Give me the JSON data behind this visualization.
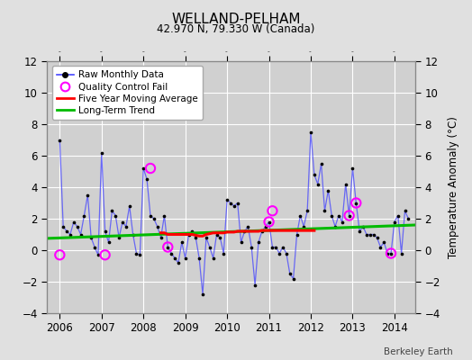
{
  "title": "WELLAND-PELHAM",
  "subtitle": "42.970 N, 79.330 W (Canada)",
  "ylabel": "Temperature Anomaly (°C)",
  "credit": "Berkeley Earth",
  "ylim": [
    -4,
    12
  ],
  "yticks": [
    -4,
    -2,
    0,
    2,
    4,
    6,
    8,
    10,
    12
  ],
  "xlim": [
    2005.7,
    2014.5
  ],
  "xticks": [
    2006,
    2007,
    2008,
    2009,
    2010,
    2011,
    2012,
    2013,
    2014
  ],
  "bg_color": "#e0e0e0",
  "plot_bg_color": "#d0d0d0",
  "raw_color": "#4444ff",
  "dot_color": "#000000",
  "qc_color": "#ff00ff",
  "ma_color": "#ff0000",
  "trend_color": "#00bb00",
  "monthly_x": [
    2006.0,
    2006.083,
    2006.167,
    2006.25,
    2006.333,
    2006.417,
    2006.5,
    2006.583,
    2006.667,
    2006.75,
    2006.833,
    2006.917,
    2007.0,
    2007.083,
    2007.167,
    2007.25,
    2007.333,
    2007.417,
    2007.5,
    2007.583,
    2007.667,
    2007.75,
    2007.833,
    2007.917,
    2008.0,
    2008.083,
    2008.167,
    2008.25,
    2008.333,
    2008.417,
    2008.5,
    2008.583,
    2008.667,
    2008.75,
    2008.833,
    2008.917,
    2009.0,
    2009.083,
    2009.167,
    2009.25,
    2009.333,
    2009.417,
    2009.5,
    2009.583,
    2009.667,
    2009.75,
    2009.833,
    2009.917,
    2010.0,
    2010.083,
    2010.167,
    2010.25,
    2010.333,
    2010.417,
    2010.5,
    2010.583,
    2010.667,
    2010.75,
    2010.833,
    2010.917,
    2011.0,
    2011.083,
    2011.167,
    2011.25,
    2011.333,
    2011.417,
    2011.5,
    2011.583,
    2011.667,
    2011.75,
    2011.833,
    2011.917,
    2012.0,
    2012.083,
    2012.167,
    2012.25,
    2012.333,
    2012.417,
    2012.5,
    2012.583,
    2012.667,
    2012.75,
    2012.833,
    2012.917,
    2013.0,
    2013.083,
    2013.167,
    2013.25,
    2013.333,
    2013.417,
    2013.5,
    2013.583,
    2013.667,
    2013.75,
    2013.833,
    2013.917,
    2014.0,
    2014.083,
    2014.167,
    2014.25,
    2014.333
  ],
  "monthly_y": [
    7.0,
    1.5,
    1.2,
    1.0,
    1.8,
    1.5,
    1.0,
    2.2,
    3.5,
    0.8,
    0.2,
    -0.3,
    6.2,
    1.2,
    0.5,
    2.5,
    2.2,
    0.8,
    1.8,
    1.5,
    2.8,
    1.0,
    -0.2,
    -0.3,
    5.2,
    4.5,
    2.2,
    2.0,
    1.5,
    0.8,
    2.2,
    0.2,
    -0.2,
    -0.5,
    -0.8,
    0.5,
    -0.5,
    1.0,
    1.2,
    0.8,
    -0.5,
    -2.8,
    0.8,
    0.2,
    -0.5,
    1.0,
    0.8,
    -0.2,
    3.2,
    3.0,
    2.8,
    3.0,
    0.5,
    1.2,
    1.5,
    0.2,
    -2.2,
    0.5,
    1.2,
    1.5,
    1.8,
    0.2,
    0.2,
    -0.2,
    0.2,
    -0.2,
    -1.5,
    -1.8,
    1.0,
    2.2,
    1.5,
    2.5,
    7.5,
    4.8,
    4.2,
    5.5,
    2.5,
    3.8,
    2.2,
    1.5,
    2.2,
    1.8,
    4.2,
    2.2,
    5.2,
    3.0,
    1.2,
    1.5,
    1.0,
    1.0,
    1.0,
    0.8,
    0.2,
    0.5,
    -0.2,
    -0.2,
    1.8,
    2.2,
    -0.2,
    2.5,
    2.0
  ],
  "qc_fail_x": [
    2006.0,
    2007.083,
    2008.167,
    2008.583,
    2011.0,
    2011.083,
    2012.917,
    2013.083,
    2013.917
  ],
  "qc_fail_y": [
    -0.3,
    -0.3,
    5.2,
    0.2,
    1.8,
    2.5,
    2.2,
    3.0,
    -0.2
  ],
  "ma_x": [
    2008.417,
    2008.5,
    2008.583,
    2008.667,
    2008.75,
    2008.833,
    2008.917,
    2009.0,
    2009.083,
    2009.167,
    2009.25,
    2009.333,
    2009.417,
    2009.5,
    2009.583,
    2009.667,
    2009.75,
    2009.833,
    2009.917,
    2010.0,
    2010.083,
    2010.167,
    2010.25,
    2010.333,
    2010.417,
    2010.5,
    2010.583,
    2010.667,
    2010.75,
    2010.833,
    2010.917,
    2011.0,
    2011.083,
    2011.167,
    2011.25,
    2011.333,
    2011.417,
    2011.5,
    2011.583,
    2011.667,
    2011.75,
    2011.833,
    2011.917,
    2012.0,
    2012.083
  ],
  "ma_y": [
    1.1,
    1.1,
    1.0,
    1.0,
    1.0,
    1.0,
    1.0,
    1.0,
    1.0,
    1.0,
    0.95,
    0.9,
    0.9,
    1.0,
    1.05,
    1.1,
    1.1,
    1.1,
    1.1,
    1.15,
    1.15,
    1.15,
    1.2,
    1.2,
    1.2,
    1.2,
    1.2,
    1.2,
    1.2,
    1.25,
    1.25,
    1.25,
    1.25,
    1.25,
    1.25,
    1.25,
    1.25,
    1.25,
    1.25,
    1.25,
    1.25,
    1.25,
    1.25,
    1.25,
    1.25
  ],
  "trend_x": [
    2005.7,
    2014.5
  ],
  "trend_y": [
    0.75,
    1.6
  ]
}
